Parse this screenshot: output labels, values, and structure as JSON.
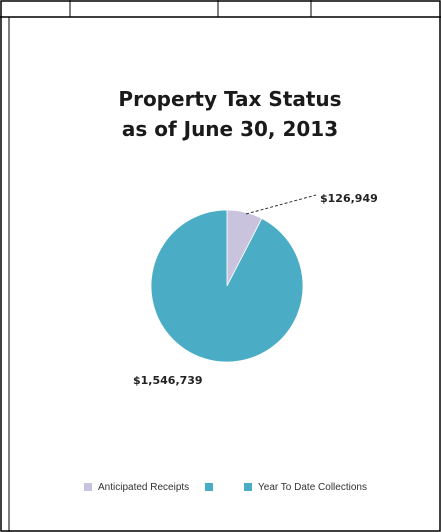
{
  "chart_data": {
    "type": "pie",
    "title_lines": [
      "Property Tax Status",
      "as of June 30, 2013"
    ],
    "slices": [
      {
        "label": "Anticipated Receipts",
        "value": 126949,
        "display": "$126,949",
        "color": "#c9c3de"
      },
      {
        "label": "Year To Date Collections",
        "value": 1546739,
        "display": "$1,546,739",
        "color": "#4bacc6"
      }
    ],
    "legend": {
      "placement": "bottom",
      "entries": [
        {
          "label": "Anticipated Receipts",
          "color": "#c9c3de"
        },
        {
          "label": "",
          "color": "#4bacc6"
        },
        {
          "label": "Year To Date Collections",
          "color": "#4bacc6"
        }
      ]
    }
  }
}
